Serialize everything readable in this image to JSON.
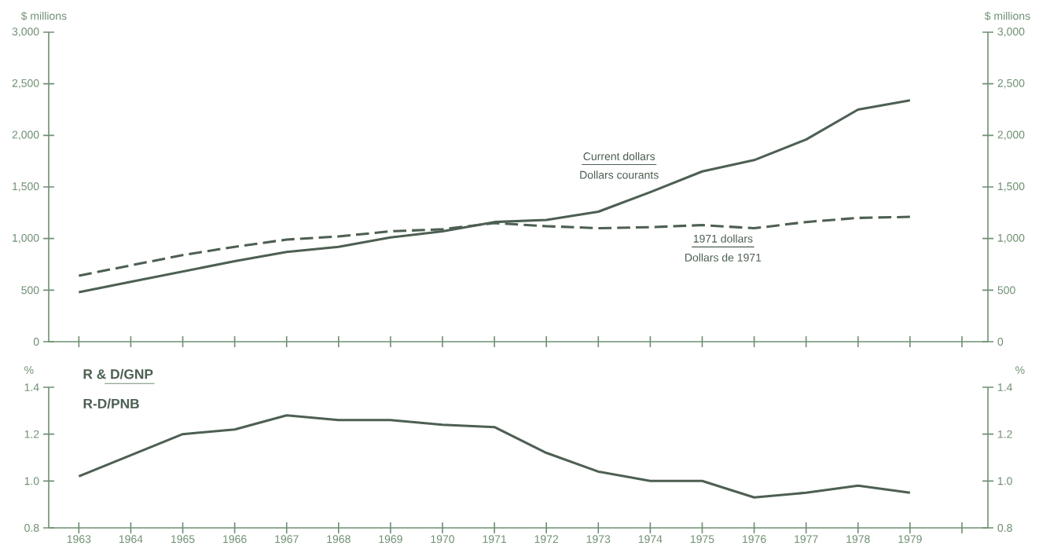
{
  "chart_data": [
    {
      "type": "line",
      "ylabel": "$ millions",
      "y2label": "$ millions",
      "x": [
        1963,
        1964,
        1965,
        1966,
        1967,
        1968,
        1969,
        1970,
        1971,
        1972,
        1973,
        1974,
        1975,
        1976,
        1977,
        1978,
        1979
      ],
      "series": [
        {
          "name": "Current dollars",
          "color": "#4d5f52",
          "line_style": "solid",
          "values": [
            480,
            580,
            680,
            780,
            870,
            920,
            1010,
            1070,
            1160,
            1180,
            1260,
            1450,
            1650,
            1760,
            1960,
            2250,
            2340
          ]
        },
        {
          "name": "1971 dollars",
          "color": "#4d5f52",
          "line_style": "dashed",
          "values": [
            640,
            740,
            840,
            920,
            990,
            1020,
            1070,
            1090,
            1150,
            1120,
            1100,
            1110,
            1130,
            1100,
            1160,
            1200,
            1210
          ]
        }
      ],
      "annotations": [
        "Dollars courants",
        "Dollars de 1971"
      ],
      "xlim": [
        1962.42,
        1980.5
      ],
      "xticks": [
        1963,
        1964,
        1965,
        1966,
        1967,
        1968,
        1969,
        1970,
        1971,
        1972,
        1973,
        1974,
        1975,
        1976,
        1977,
        1978,
        1979,
        {
          "value": 1980,
          "label": null
        }
      ],
      "ylim": [
        0,
        3000
      ],
      "yticks": [
        0,
        500,
        {
          "value": 1000,
          "label": "1,000"
        },
        {
          "value": 1500,
          "label": "1,500"
        },
        {
          "value": 2000,
          "label": "2,000"
        },
        {
          "value": 2500,
          "label": "2,500"
        },
        {
          "value": 3000,
          "label": "3,000"
        }
      ],
      "y2lim": [
        0,
        3000
      ],
      "y2ticks": [
        0,
        500,
        {
          "value": 1000,
          "label": "1,000"
        },
        {
          "value": 1500,
          "label": "1,500"
        },
        {
          "value": 2000,
          "label": "2,000"
        },
        {
          "value": 2500,
          "label": "2,500"
        },
        {
          "value": 3000,
          "label": "3,000"
        }
      ],
      "tick_labels": "y"
    },
    {
      "type": "line",
      "title": "R & D/GNP",
      "subtitle": "R-D/PNB",
      "ylabel": "%",
      "y2label": "%",
      "x": [
        1963,
        1964,
        1965,
        1966,
        1967,
        1968,
        1969,
        1970,
        1971,
        1972,
        1973,
        1974,
        1975,
        1976,
        1977,
        1978,
        1979
      ],
      "series": [
        {
          "color": "#4d5f52",
          "line_style": "solid",
          "values": [
            1.02,
            1.11,
            1.2,
            1.22,
            1.28,
            1.26,
            1.26,
            1.24,
            1.23,
            1.12,
            1.04,
            1.0,
            1.0,
            0.93,
            0.95,
            0.98,
            0.95
          ]
        }
      ],
      "xlim": [
        1962.42,
        1980.5
      ],
      "xticks": [
        1963,
        1964,
        1965,
        1966,
        1967,
        1968,
        1969,
        1970,
        1971,
        1972,
        1973,
        1974,
        1975,
        1976,
        1977,
        1978,
        1979,
        {
          "value": 1980,
          "label": null
        }
      ],
      "ylim": [
        0.8,
        1.4
      ],
      "yticks": [
        0.8,
        {
          "value": 1.0,
          "label": "1.0"
        },
        1.2,
        1.4
      ],
      "y2lim": [
        0.8,
        1.4
      ],
      "y2ticks": [
        0.8,
        {
          "value": 1.0,
          "label": "1.0"
        },
        1.2,
        1.4
      ]
    }
  ]
}
